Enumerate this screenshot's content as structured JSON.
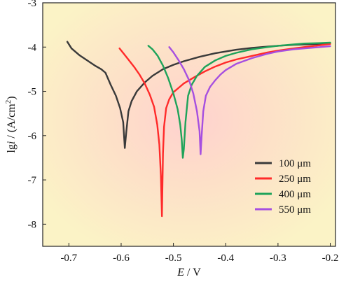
{
  "chart_data": {
    "type": "line",
    "title": "",
    "xlabel": {
      "italic": "E",
      "rest": " / V"
    },
    "ylabel": {
      "prefix": "lg",
      "italic": "i",
      "rest": " / (A/cm",
      "sup": "2",
      "close": ")"
    },
    "xlim": [
      -0.75,
      -0.19
    ],
    "ylim": [
      -8.5,
      -3.0
    ],
    "xticks": [
      -0.7,
      -0.6,
      -0.5,
      -0.4,
      -0.3,
      -0.2
    ],
    "xtick_labels": [
      "-0.7",
      "-0.6",
      "-0.5",
      "-0.4",
      "-0.3",
      "-0.2"
    ],
    "yticks": [
      -3,
      -4,
      -5,
      -6,
      -7,
      -8
    ],
    "ytick_labels": [
      "-3",
      "-4",
      "-5",
      "-6",
      "-7",
      "-8"
    ],
    "grid": false,
    "legend_position": "bottom-right",
    "background": "yellow-pink radial gradient",
    "series": [
      {
        "name": "100 μm",
        "color": "#3a3a3a",
        "x": [
          -0.703,
          -0.695,
          -0.68,
          -0.665,
          -0.65,
          -0.638,
          -0.63,
          -0.62,
          -0.61,
          -0.602,
          -0.596,
          -0.593,
          -0.59,
          -0.586,
          -0.58,
          -0.57,
          -0.555,
          -0.54,
          -0.52,
          -0.5,
          -0.48,
          -0.45,
          -0.42,
          -0.4,
          -0.38,
          -0.35,
          -0.32,
          -0.3,
          -0.27,
          -0.25,
          -0.22,
          -0.2
        ],
        "y": [
          -3.88,
          -4.03,
          -4.18,
          -4.3,
          -4.42,
          -4.5,
          -4.58,
          -4.85,
          -5.1,
          -5.38,
          -5.7,
          -6.28,
          -5.9,
          -5.45,
          -5.22,
          -5.0,
          -4.8,
          -4.65,
          -4.5,
          -4.4,
          -4.32,
          -4.22,
          -4.14,
          -4.1,
          -4.06,
          -4.02,
          -3.99,
          -3.97,
          -3.95,
          -3.94,
          -3.93,
          -3.92
        ]
      },
      {
        "name": "250 μm",
        "color": "#ff2a2a",
        "x": [
          -0.603,
          -0.595,
          -0.585,
          -0.575,
          -0.565,
          -0.555,
          -0.545,
          -0.537,
          -0.531,
          -0.527,
          -0.524,
          -0.522,
          -0.52,
          -0.518,
          -0.514,
          -0.508,
          -0.5,
          -0.49,
          -0.48,
          -0.46,
          -0.44,
          -0.42,
          -0.4,
          -0.38,
          -0.35,
          -0.32,
          -0.3,
          -0.27,
          -0.25,
          -0.22,
          -0.2
        ],
        "y": [
          -4.03,
          -4.15,
          -4.3,
          -4.45,
          -4.62,
          -4.82,
          -5.08,
          -5.35,
          -5.75,
          -6.2,
          -6.9,
          -7.82,
          -6.4,
          -5.8,
          -5.38,
          -5.18,
          -5.02,
          -4.92,
          -4.82,
          -4.68,
          -4.55,
          -4.44,
          -4.35,
          -4.28,
          -4.2,
          -4.12,
          -4.08,
          -4.03,
          -4.0,
          -3.96,
          -3.93
        ]
      },
      {
        "name": "400 μm",
        "color": "#1ea35a",
        "x": [
          -0.548,
          -0.54,
          -0.53,
          -0.52,
          -0.51,
          -0.5,
          -0.492,
          -0.487,
          -0.484,
          -0.482,
          -0.48,
          -0.477,
          -0.472,
          -0.465,
          -0.455,
          -0.44,
          -0.42,
          -0.4,
          -0.38,
          -0.35,
          -0.32,
          -0.3,
          -0.27,
          -0.25,
          -0.22,
          -0.2
        ],
        "y": [
          -3.97,
          -4.05,
          -4.2,
          -4.42,
          -4.7,
          -5.05,
          -5.4,
          -5.75,
          -6.1,
          -6.5,
          -6.3,
          -5.7,
          -5.1,
          -4.85,
          -4.65,
          -4.45,
          -4.3,
          -4.2,
          -4.13,
          -4.05,
          -4.0,
          -3.97,
          -3.94,
          -3.92,
          -3.91,
          -3.9
        ]
      },
      {
        "name": "550 μm",
        "color": "#a64fe0",
        "x": [
          -0.508,
          -0.5,
          -0.49,
          -0.48,
          -0.47,
          -0.462,
          -0.455,
          -0.45,
          -0.448,
          -0.446,
          -0.443,
          -0.438,
          -0.43,
          -0.42,
          -0.41,
          -0.4,
          -0.38,
          -0.35,
          -0.32,
          -0.3,
          -0.27,
          -0.25,
          -0.22,
          -0.2
        ],
        "y": [
          -4.0,
          -4.12,
          -4.3,
          -4.5,
          -4.75,
          -5.05,
          -5.45,
          -5.9,
          -6.42,
          -6.0,
          -5.45,
          -5.1,
          -4.9,
          -4.75,
          -4.62,
          -4.52,
          -4.38,
          -4.25,
          -4.15,
          -4.1,
          -4.05,
          -4.03,
          -4.0,
          -3.98
        ]
      }
    ]
  }
}
